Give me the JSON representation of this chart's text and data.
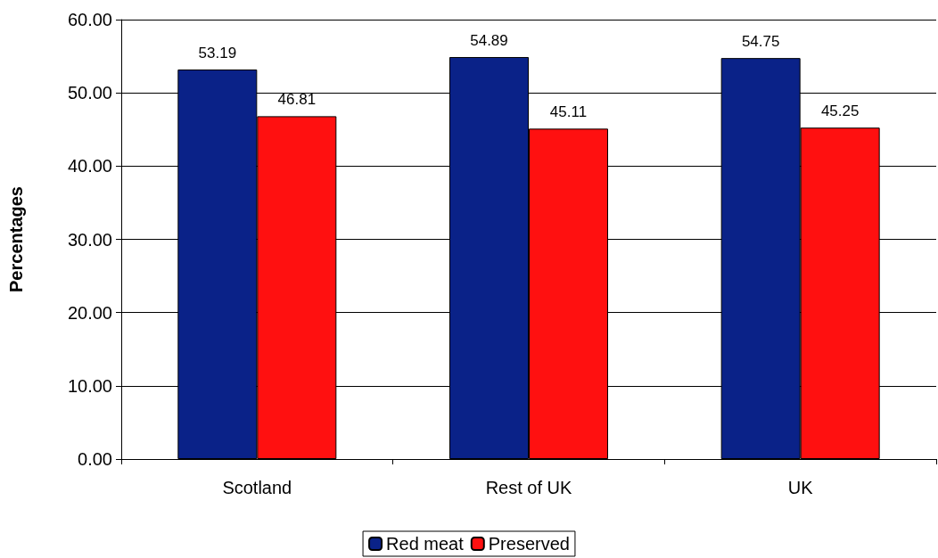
{
  "chart_data": {
    "type": "bar",
    "ylabel": "Percentages",
    "categories": [
      "Scotland",
      "Rest of UK",
      "UK"
    ],
    "series": [
      {
        "name": "Red meat",
        "color": "#0a2288",
        "values": [
          53.19,
          54.89,
          54.75
        ]
      },
      {
        "name": "Preserved",
        "color": "#ff1010",
        "values": [
          46.81,
          45.11,
          45.25
        ]
      }
    ],
    "ylim": [
      0,
      60
    ],
    "yticks": [
      {
        "value": 0,
        "label": "0.00"
      },
      {
        "value": 10,
        "label": "10.00"
      },
      {
        "value": 20,
        "label": "20.00"
      },
      {
        "value": 30,
        "label": "30.00"
      },
      {
        "value": 40,
        "label": "40.00"
      },
      {
        "value": 50,
        "label": "50.00"
      },
      {
        "value": 60,
        "label": "60.00"
      }
    ],
    "grid": "y",
    "legend": "bottom",
    "data_labels": true
  }
}
